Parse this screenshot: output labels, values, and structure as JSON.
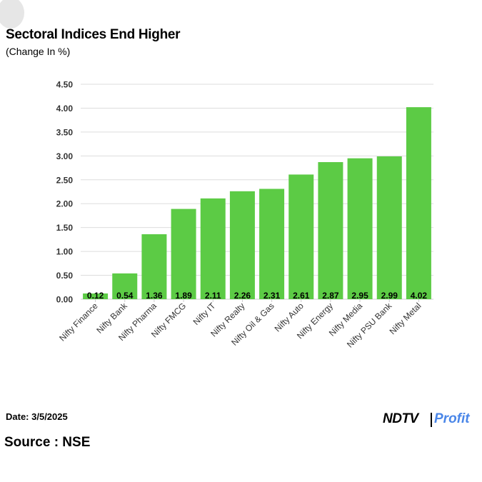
{
  "header": {
    "title": "Sectoral Indices End Higher",
    "subtitle": "(Change In %)"
  },
  "footer": {
    "date": "Date: 3/5/2025",
    "source": "Source : NSE",
    "brand_left": "NDTV",
    "brand_right": "Profit"
  },
  "colors": {
    "bar": "#5ccb45",
    "grid": "#dddddd",
    "accent_profit": "#4a86e8"
  },
  "chart_data": {
    "type": "bar",
    "title": "Sectoral Indices End Higher",
    "subtitle": "(Change In %)",
    "categories": [
      "Nifty Finance",
      "Nifty Bank",
      "Nifty Pharma",
      "Nifty FMCG",
      "Nifty IT",
      "Nifty Realty",
      "Nifty Oil & Gas",
      "Nifty Auto",
      "Nifty Energy",
      "Nifty Media",
      "Nifty PSU Bank",
      "Nifty Metal"
    ],
    "values": [
      0.12,
      0.54,
      1.36,
      1.89,
      2.11,
      2.26,
      2.31,
      2.61,
      2.87,
      2.95,
      2.99,
      4.02
    ],
    "value_labels": [
      "0.12",
      "0.54",
      "1.36",
      "1.89",
      "2.11",
      "2.26",
      "2.31",
      "2.61",
      "2.87",
      "2.95",
      "2.99",
      "4.02"
    ],
    "yticks": [
      "0.00",
      "0.50",
      "1.00",
      "1.50",
      "2.00",
      "2.50",
      "3.00",
      "3.50",
      "4.00",
      "4.50"
    ],
    "ylim": [
      0,
      4.5
    ],
    "grid": true,
    "legend": "none",
    "xlabel": "",
    "ylabel": ""
  }
}
